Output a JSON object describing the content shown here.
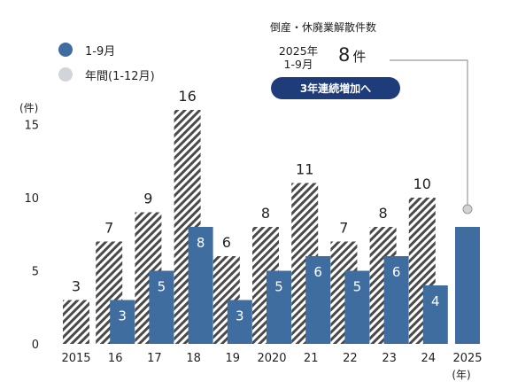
{
  "chart_data": {
    "type": "bar",
    "categories": [
      "2015",
      "16",
      "17",
      "18",
      "19",
      "2020",
      "21",
      "22",
      "23",
      "24",
      "2025"
    ],
    "series": [
      {
        "name": "年間(1-12月)",
        "values": [
          3,
          7,
          9,
          16,
          6,
          8,
          11,
          7,
          8,
          10,
          null
        ],
        "color": "#ffffff",
        "pattern": "diagonal-hatch"
      },
      {
        "name": "1-9月",
        "values": [
          null,
          3,
          5,
          8,
          3,
          5,
          6,
          5,
          6,
          4,
          8
        ],
        "color": "#3f6da0"
      }
    ],
    "ylim": [
      0,
      16
    ],
    "yticks": [
      0,
      5,
      10,
      15
    ],
    "ylabel": "(件)",
    "xlabel": "(年)",
    "grid": false,
    "legend_position": "top-left"
  },
  "legend": {
    "items": [
      {
        "label": "1-9月",
        "color": "#3f6da0"
      },
      {
        "label": "年間(1-12月)",
        "color": "#d1d5d9"
      }
    ]
  },
  "callout": {
    "title": "倒産・休廃業解散件数",
    "year": "2025年",
    "period": "1-9月",
    "count": "8",
    "unit": "件",
    "badge": "3年連続増加へ"
  }
}
